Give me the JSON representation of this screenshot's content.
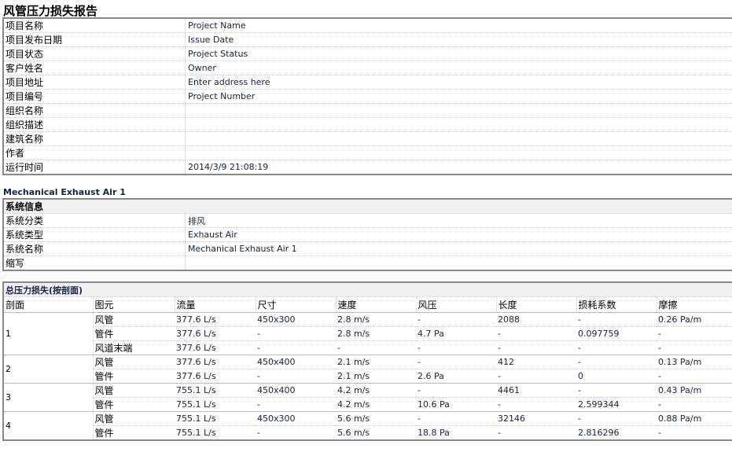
{
  "title": "风管压力损失报告",
  "info": [
    {
      "k": "项目名称",
      "v": "Project Name"
    },
    {
      "k": "项目发布日期",
      "v": "Issue Date"
    },
    {
      "k": "项目状态",
      "v": "Project Status"
    },
    {
      "k": "客户姓名",
      "v": "Owner"
    },
    {
      "k": "项目地址",
      "v": "Enter address here"
    },
    {
      "k": "项目编号",
      "v": "Project Number"
    },
    {
      "k": "组织名称",
      "v": ""
    },
    {
      "k": "组织描述",
      "v": ""
    },
    {
      "k": "建筑名称",
      "v": ""
    },
    {
      "k": "作者",
      "v": ""
    },
    {
      "k": "运行时间",
      "v": "2014/3/9 21:08:19"
    }
  ],
  "system_title": "Mechanical Exhaust Air 1",
  "system": {
    "header": "系统信息",
    "rows": [
      {
        "k": "系统分类",
        "v": "排风"
      },
      {
        "k": "系统类型",
        "v": "Exhaust Air"
      },
      {
        "k": "系统名称",
        "v": "Mechanical Exhaust Air 1"
      },
      {
        "k": "缩写",
        "v": ""
      }
    ]
  },
  "pressure": {
    "header": "总压力损失(按剖面)",
    "columns": [
      "剖面",
      "图元",
      "流量",
      "尺寸",
      "速度",
      "风压",
      "长度",
      "损耗系数",
      "摩擦"
    ],
    "sections": [
      {
        "id": "1",
        "rows": [
          [
            "风管",
            "377.6 L/s",
            "450x300",
            "2.8 m/s",
            "-",
            "2088",
            "-",
            "0.26 Pa/m"
          ],
          [
            "管件",
            "377.6 L/s",
            "-",
            "2.8 m/s",
            "4.7 Pa",
            "-",
            "0.097759",
            "-"
          ],
          [
            "风道末端",
            "377.6 L/s",
            "-",
            "-",
            "-",
            "-",
            "-",
            "-"
          ]
        ]
      },
      {
        "id": "2",
        "rows": [
          [
            "风管",
            "377.6 L/s",
            "450x400",
            "2.1 m/s",
            "-",
            "412",
            "-",
            "0.13 Pa/m"
          ],
          [
            "管件",
            "377.6 L/s",
            "-",
            "2.1 m/s",
            "2.6 Pa",
            "-",
            "0",
            "-"
          ]
        ]
      },
      {
        "id": "3",
        "rows": [
          [
            "风管",
            "755.1 L/s",
            "450x400",
            "4.2 m/s",
            "-",
            "4461",
            "-",
            "0.43 Pa/m"
          ],
          [
            "管件",
            "755.1 L/s",
            "-",
            "4.2 m/s",
            "10.6 Pa",
            "-",
            "2.599344",
            "-"
          ]
        ]
      },
      {
        "id": "4",
        "rows": [
          [
            "风管",
            "755.1 L/s",
            "450x300",
            "5.6 m/s",
            "-",
            "32146",
            "-",
            "0.88 Pa/m"
          ],
          [
            "管件",
            "755.1 L/s",
            "-",
            "5.6 m/s",
            "18.8 Pa",
            "-",
            "2.816296",
            "-"
          ]
        ]
      }
    ]
  }
}
